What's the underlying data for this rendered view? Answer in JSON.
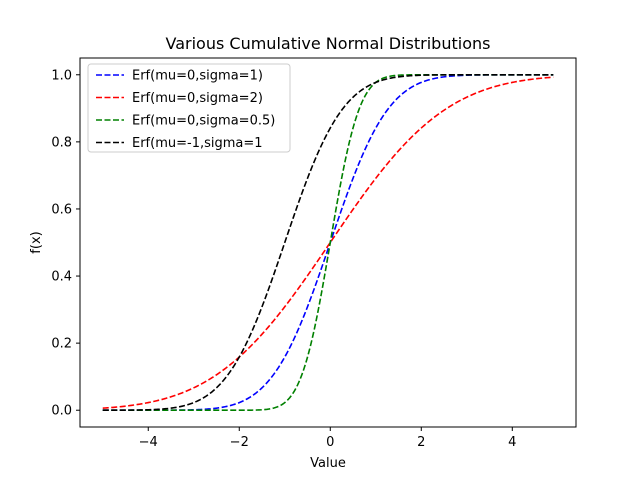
{
  "chart_data": {
    "type": "line",
    "title": "Various Cumulative Normal Distributions",
    "xlabel": "Value",
    "ylabel": "f(x)",
    "xlim": [
      -5.5,
      5.4
    ],
    "ylim": [
      -0.05,
      1.05
    ],
    "xticks": [
      -4,
      -2,
      0,
      2,
      4
    ],
    "xtick_labels": [
      "−4",
      "−2",
      "0",
      "2",
      "4"
    ],
    "yticks": [
      0.0,
      0.2,
      0.4,
      0.6,
      0.8,
      1.0
    ],
    "ytick_labels": [
      "0.0",
      "0.2",
      "0.4",
      "0.6",
      "0.8",
      "1.0"
    ],
    "grid": false,
    "legend_position": "upper-left",
    "x_range": [
      -5.0,
      4.9
    ],
    "series": [
      {
        "name": "Erf(mu=0,sigma=1)",
        "mu": 0,
        "sigma": 1,
        "color": "#0000ff",
        "style": "dashed"
      },
      {
        "name": "Erf(mu=0,sigma=2)",
        "mu": 0,
        "sigma": 2,
        "color": "#ff0000",
        "style": "dashed"
      },
      {
        "name": "Erf(mu=0,sigma=0.5)",
        "mu": 0,
        "sigma": 0.5,
        "color": "#008000",
        "style": "dashed"
      },
      {
        "name": "Erf(mu=-1,sigma=1",
        "mu": -1,
        "sigma": 1,
        "color": "#000000",
        "style": "dashed"
      }
    ]
  }
}
